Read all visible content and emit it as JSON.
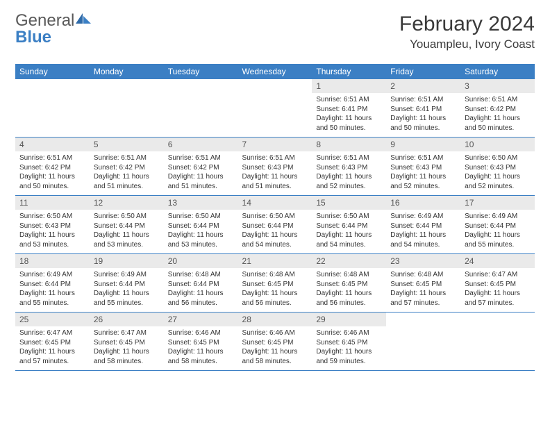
{
  "logo": {
    "text1": "General",
    "text2": "Blue"
  },
  "title": "February 2024",
  "location": "Youampleu, Ivory Coast",
  "colors": {
    "header_bg": "#3b7fc4",
    "header_text": "#ffffff",
    "daynum_bg": "#eaeaea",
    "border": "#3b7fc4",
    "page_bg": "#ffffff",
    "text": "#333333"
  },
  "day_labels": [
    "Sunday",
    "Monday",
    "Tuesday",
    "Wednesday",
    "Thursday",
    "Friday",
    "Saturday"
  ],
  "weeks": [
    {
      "days": [
        {
          "n": "",
          "sunrise": "",
          "sunset": "",
          "daylight": ""
        },
        {
          "n": "",
          "sunrise": "",
          "sunset": "",
          "daylight": ""
        },
        {
          "n": "",
          "sunrise": "",
          "sunset": "",
          "daylight": ""
        },
        {
          "n": "",
          "sunrise": "",
          "sunset": "",
          "daylight": ""
        },
        {
          "n": "1",
          "sunrise": "Sunrise: 6:51 AM",
          "sunset": "Sunset: 6:41 PM",
          "daylight": "Daylight: 11 hours and 50 minutes."
        },
        {
          "n": "2",
          "sunrise": "Sunrise: 6:51 AM",
          "sunset": "Sunset: 6:41 PM",
          "daylight": "Daylight: 11 hours and 50 minutes."
        },
        {
          "n": "3",
          "sunrise": "Sunrise: 6:51 AM",
          "sunset": "Sunset: 6:42 PM",
          "daylight": "Daylight: 11 hours and 50 minutes."
        }
      ]
    },
    {
      "days": [
        {
          "n": "4",
          "sunrise": "Sunrise: 6:51 AM",
          "sunset": "Sunset: 6:42 PM",
          "daylight": "Daylight: 11 hours and 50 minutes."
        },
        {
          "n": "5",
          "sunrise": "Sunrise: 6:51 AM",
          "sunset": "Sunset: 6:42 PM",
          "daylight": "Daylight: 11 hours and 51 minutes."
        },
        {
          "n": "6",
          "sunrise": "Sunrise: 6:51 AM",
          "sunset": "Sunset: 6:42 PM",
          "daylight": "Daylight: 11 hours and 51 minutes."
        },
        {
          "n": "7",
          "sunrise": "Sunrise: 6:51 AM",
          "sunset": "Sunset: 6:43 PM",
          "daylight": "Daylight: 11 hours and 51 minutes."
        },
        {
          "n": "8",
          "sunrise": "Sunrise: 6:51 AM",
          "sunset": "Sunset: 6:43 PM",
          "daylight": "Daylight: 11 hours and 52 minutes."
        },
        {
          "n": "9",
          "sunrise": "Sunrise: 6:51 AM",
          "sunset": "Sunset: 6:43 PM",
          "daylight": "Daylight: 11 hours and 52 minutes."
        },
        {
          "n": "10",
          "sunrise": "Sunrise: 6:50 AM",
          "sunset": "Sunset: 6:43 PM",
          "daylight": "Daylight: 11 hours and 52 minutes."
        }
      ]
    },
    {
      "days": [
        {
          "n": "11",
          "sunrise": "Sunrise: 6:50 AM",
          "sunset": "Sunset: 6:43 PM",
          "daylight": "Daylight: 11 hours and 53 minutes."
        },
        {
          "n": "12",
          "sunrise": "Sunrise: 6:50 AM",
          "sunset": "Sunset: 6:44 PM",
          "daylight": "Daylight: 11 hours and 53 minutes."
        },
        {
          "n": "13",
          "sunrise": "Sunrise: 6:50 AM",
          "sunset": "Sunset: 6:44 PM",
          "daylight": "Daylight: 11 hours and 53 minutes."
        },
        {
          "n": "14",
          "sunrise": "Sunrise: 6:50 AM",
          "sunset": "Sunset: 6:44 PM",
          "daylight": "Daylight: 11 hours and 54 minutes."
        },
        {
          "n": "15",
          "sunrise": "Sunrise: 6:50 AM",
          "sunset": "Sunset: 6:44 PM",
          "daylight": "Daylight: 11 hours and 54 minutes."
        },
        {
          "n": "16",
          "sunrise": "Sunrise: 6:49 AM",
          "sunset": "Sunset: 6:44 PM",
          "daylight": "Daylight: 11 hours and 54 minutes."
        },
        {
          "n": "17",
          "sunrise": "Sunrise: 6:49 AM",
          "sunset": "Sunset: 6:44 PM",
          "daylight": "Daylight: 11 hours and 55 minutes."
        }
      ]
    },
    {
      "days": [
        {
          "n": "18",
          "sunrise": "Sunrise: 6:49 AM",
          "sunset": "Sunset: 6:44 PM",
          "daylight": "Daylight: 11 hours and 55 minutes."
        },
        {
          "n": "19",
          "sunrise": "Sunrise: 6:49 AM",
          "sunset": "Sunset: 6:44 PM",
          "daylight": "Daylight: 11 hours and 55 minutes."
        },
        {
          "n": "20",
          "sunrise": "Sunrise: 6:48 AM",
          "sunset": "Sunset: 6:44 PM",
          "daylight": "Daylight: 11 hours and 56 minutes."
        },
        {
          "n": "21",
          "sunrise": "Sunrise: 6:48 AM",
          "sunset": "Sunset: 6:45 PM",
          "daylight": "Daylight: 11 hours and 56 minutes."
        },
        {
          "n": "22",
          "sunrise": "Sunrise: 6:48 AM",
          "sunset": "Sunset: 6:45 PM",
          "daylight": "Daylight: 11 hours and 56 minutes."
        },
        {
          "n": "23",
          "sunrise": "Sunrise: 6:48 AM",
          "sunset": "Sunset: 6:45 PM",
          "daylight": "Daylight: 11 hours and 57 minutes."
        },
        {
          "n": "24",
          "sunrise": "Sunrise: 6:47 AM",
          "sunset": "Sunset: 6:45 PM",
          "daylight": "Daylight: 11 hours and 57 minutes."
        }
      ]
    },
    {
      "days": [
        {
          "n": "25",
          "sunrise": "Sunrise: 6:47 AM",
          "sunset": "Sunset: 6:45 PM",
          "daylight": "Daylight: 11 hours and 57 minutes."
        },
        {
          "n": "26",
          "sunrise": "Sunrise: 6:47 AM",
          "sunset": "Sunset: 6:45 PM",
          "daylight": "Daylight: 11 hours and 58 minutes."
        },
        {
          "n": "27",
          "sunrise": "Sunrise: 6:46 AM",
          "sunset": "Sunset: 6:45 PM",
          "daylight": "Daylight: 11 hours and 58 minutes."
        },
        {
          "n": "28",
          "sunrise": "Sunrise: 6:46 AM",
          "sunset": "Sunset: 6:45 PM",
          "daylight": "Daylight: 11 hours and 58 minutes."
        },
        {
          "n": "29",
          "sunrise": "Sunrise: 6:46 AM",
          "sunset": "Sunset: 6:45 PM",
          "daylight": "Daylight: 11 hours and 59 minutes."
        },
        {
          "n": "",
          "sunrise": "",
          "sunset": "",
          "daylight": ""
        },
        {
          "n": "",
          "sunrise": "",
          "sunset": "",
          "daylight": ""
        }
      ]
    }
  ]
}
